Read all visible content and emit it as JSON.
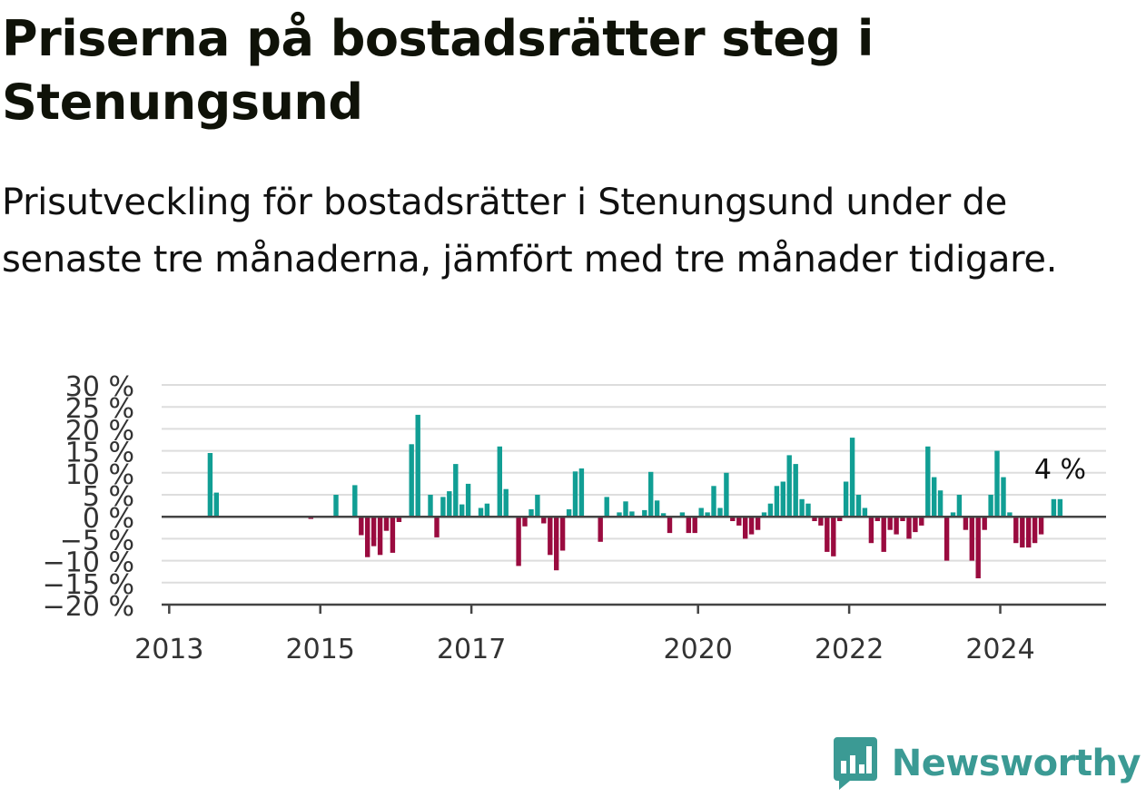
{
  "header": {
    "title": "Priserna på bostadsrätter steg i Stenungsund",
    "subtitle": "Prisutveckling för bostadsrätter i Stenungsund under de senaste tre månaderna, jämfört med tre månader tidigare."
  },
  "brand": {
    "name": "Newsworthy",
    "icon": "newsworthy-logo-icon"
  },
  "colors": {
    "positive": "#119e94",
    "negative": "#9a0b3f",
    "grid": "#dddddd",
    "axis": "#444444"
  },
  "chart_data": {
    "type": "bar",
    "title": "Priserna på bostadsrätter steg i Stenungsund",
    "ylim": [
      -20,
      30
    ],
    "y_ticks": [
      30,
      25,
      20,
      15,
      10,
      5,
      0,
      -5,
      -10,
      -15,
      -20
    ],
    "y_tick_labels": [
      "30 %",
      "25 %",
      "20 %",
      "15 %",
      "10 %",
      "5 %",
      "0 %",
      "−5 %",
      "−10 %",
      "−15 %",
      "−20 %"
    ],
    "x_ticks": [
      2013,
      2015,
      2017,
      2020,
      2022,
      2024
    ],
    "x_tick_labels": [
      "2013",
      "2015",
      "2017",
      "2020",
      "2022",
      "2024"
    ],
    "grid": true,
    "last_value_label": "4 %",
    "series": [
      {
        "points": [
          {
            "x": "2013-07",
            "y": 14.5
          },
          {
            "x": "2013-08",
            "y": 5.5
          },
          {
            "x": "2014-11",
            "y": -0.5
          },
          {
            "x": "2015-03",
            "y": 5
          },
          {
            "x": "2015-06",
            "y": 7.2
          },
          {
            "x": "2015-07",
            "y": -4.2
          },
          {
            "x": "2015-08",
            "y": -9.2
          },
          {
            "x": "2015-09",
            "y": -6.7
          },
          {
            "x": "2015-10",
            "y": -8.7
          },
          {
            "x": "2015-11",
            "y": -3.2
          },
          {
            "x": "2015-12",
            "y": -8.2
          },
          {
            "x": "2016-01",
            "y": -1.2
          },
          {
            "x": "2016-03",
            "y": 16.5
          },
          {
            "x": "2016-04",
            "y": 23.2
          },
          {
            "x": "2016-06",
            "y": 5
          },
          {
            "x": "2016-07",
            "y": -4.7
          },
          {
            "x": "2016-08",
            "y": 4.5
          },
          {
            "x": "2016-09",
            "y": 5.8
          },
          {
            "x": "2016-10",
            "y": 12
          },
          {
            "x": "2016-11",
            "y": 2.8
          },
          {
            "x": "2016-12",
            "y": 7.5
          },
          {
            "x": "2017-02",
            "y": 2
          },
          {
            "x": "2017-03",
            "y": 3
          },
          {
            "x": "2017-05",
            "y": 16
          },
          {
            "x": "2017-06",
            "y": 6.3
          },
          {
            "x": "2017-08",
            "y": -11.2
          },
          {
            "x": "2017-09",
            "y": -2.2
          },
          {
            "x": "2017-10",
            "y": 1.7
          },
          {
            "x": "2017-11",
            "y": 5
          },
          {
            "x": "2017-12",
            "y": -1.5
          },
          {
            "x": "2018-01",
            "y": -8.7
          },
          {
            "x": "2018-02",
            "y": -12.2
          },
          {
            "x": "2018-03",
            "y": -7.7
          },
          {
            "x": "2018-04",
            "y": 1.7
          },
          {
            "x": "2018-05",
            "y": 10.3
          },
          {
            "x": "2018-06",
            "y": 11
          },
          {
            "x": "2018-09",
            "y": -5.7
          },
          {
            "x": "2018-10",
            "y": 4.5
          },
          {
            "x": "2018-12",
            "y": 1
          },
          {
            "x": "2019-01",
            "y": 3.5
          },
          {
            "x": "2019-02",
            "y": 1.2
          },
          {
            "x": "2019-04",
            "y": 1.5
          },
          {
            "x": "2019-05",
            "y": 10.2
          },
          {
            "x": "2019-06",
            "y": 3.7
          },
          {
            "x": "2019-07",
            "y": 0.8
          },
          {
            "x": "2019-08",
            "y": -3.7
          },
          {
            "x": "2019-10",
            "y": 1
          },
          {
            "x": "2019-11",
            "y": -3.7
          },
          {
            "x": "2019-12",
            "y": -3.7
          },
          {
            "x": "2020-01",
            "y": 2
          },
          {
            "x": "2020-02",
            "y": 1
          },
          {
            "x": "2020-03",
            "y": 7
          },
          {
            "x": "2020-04",
            "y": 2
          },
          {
            "x": "2020-05",
            "y": 10
          },
          {
            "x": "2020-06",
            "y": -1
          },
          {
            "x": "2020-07",
            "y": -2
          },
          {
            "x": "2020-08",
            "y": -5
          },
          {
            "x": "2020-09",
            "y": -4
          },
          {
            "x": "2020-10",
            "y": -3
          },
          {
            "x": "2020-11",
            "y": 1
          },
          {
            "x": "2020-12",
            "y": 3
          },
          {
            "x": "2021-01",
            "y": 7
          },
          {
            "x": "2021-02",
            "y": 8
          },
          {
            "x": "2021-03",
            "y": 14
          },
          {
            "x": "2021-04",
            "y": 12
          },
          {
            "x": "2021-05",
            "y": 4
          },
          {
            "x": "2021-06",
            "y": 3
          },
          {
            "x": "2021-07",
            "y": -1
          },
          {
            "x": "2021-08",
            "y": -2
          },
          {
            "x": "2021-09",
            "y": -8
          },
          {
            "x": "2021-10",
            "y": -9
          },
          {
            "x": "2021-11",
            "y": -1
          },
          {
            "x": "2021-12",
            "y": 8
          },
          {
            "x": "2022-01",
            "y": 18
          },
          {
            "x": "2022-02",
            "y": 5
          },
          {
            "x": "2022-03",
            "y": 2
          },
          {
            "x": "2022-04",
            "y": -6
          },
          {
            "x": "2022-05",
            "y": -1
          },
          {
            "x": "2022-06",
            "y": -8
          },
          {
            "x": "2022-07",
            "y": -3
          },
          {
            "x": "2022-08",
            "y": -4
          },
          {
            "x": "2022-09",
            "y": -1
          },
          {
            "x": "2022-10",
            "y": -5
          },
          {
            "x": "2022-11",
            "y": -3.5
          },
          {
            "x": "2022-12",
            "y": -2
          },
          {
            "x": "2023-01",
            "y": 16
          },
          {
            "x": "2023-02",
            "y": 9
          },
          {
            "x": "2023-03",
            "y": 6
          },
          {
            "x": "2023-04",
            "y": -10
          },
          {
            "x": "2023-05",
            "y": 1
          },
          {
            "x": "2023-06",
            "y": 5
          },
          {
            "x": "2023-07",
            "y": -3
          },
          {
            "x": "2023-08",
            "y": -10
          },
          {
            "x": "2023-09",
            "y": -14
          },
          {
            "x": "2023-10",
            "y": -3
          },
          {
            "x": "2023-11",
            "y": 5
          },
          {
            "x": "2023-12",
            "y": 15
          },
          {
            "x": "2024-01",
            "y": 9
          },
          {
            "x": "2024-02",
            "y": 1
          },
          {
            "x": "2024-03",
            "y": -6
          },
          {
            "x": "2024-04",
            "y": -7
          },
          {
            "x": "2024-05",
            "y": -7
          },
          {
            "x": "2024-06",
            "y": -6
          },
          {
            "x": "2024-07",
            "y": -4
          },
          {
            "x": "2024-09",
            "y": 4
          },
          {
            "x": "2024-10",
            "y": 4
          }
        ]
      }
    ]
  }
}
